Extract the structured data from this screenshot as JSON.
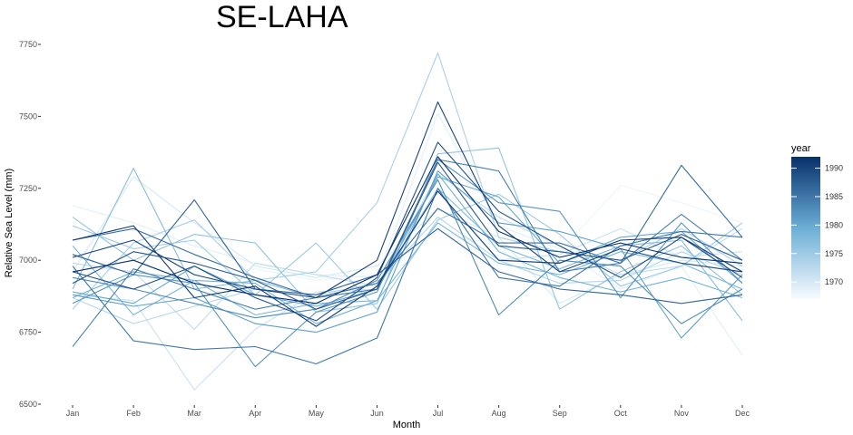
{
  "chart_data": {
    "type": "line",
    "title": "SE-LAHA",
    "xlabel": "Month",
    "ylabel": "Relative Sea Level (mm)",
    "categories": [
      "Jan",
      "Feb",
      "Mar",
      "Apr",
      "May",
      "Jun",
      "Jul",
      "Aug",
      "Sep",
      "Oct",
      "Nov",
      "Dec"
    ],
    "ylim": [
      6500,
      7775
    ],
    "yticks": [
      6500,
      6750,
      7000,
      7250,
      7500,
      7750
    ],
    "grid": false,
    "legend": {
      "title": "year",
      "placement": "right",
      "range": [
        1967,
        1992
      ],
      "ticks": [
        1970,
        1975,
        1980,
        1985,
        1990
      ],
      "color_low": "#f7fbff",
      "color_high": "#08306b"
    },
    "series": [
      {
        "year": 1967,
        "values": [
          6950,
          6980,
          6960,
          6930,
          6900,
          6920,
          7120,
          7060,
          7000,
          7020,
          6990,
          6970
        ]
      },
      {
        "year": 1968,
        "values": [
          6920,
          6900,
          6950,
          6970,
          6930,
          6950,
          7100,
          7050,
          7030,
          7260,
          7200,
          7130
        ]
      },
      {
        "year": 1969,
        "values": [
          7190,
          7130,
          7050,
          6990,
          6950,
          6940,
          7510,
          7120,
          7040,
          6900,
          6980,
          6670
        ]
      },
      {
        "year": 1970,
        "values": [
          6960,
          7290,
          7130,
          6980,
          6940,
          6980,
          7180,
          7080,
          6850,
          6950,
          7000,
          6980
        ]
      },
      {
        "year": 1971,
        "values": [
          6880,
          6860,
          6550,
          6760,
          6890,
          6900,
          7240,
          7000,
          7020,
          7110,
          7010,
          7030
        ]
      },
      {
        "year": 1972,
        "values": [
          6990,
          6960,
          6760,
          6990,
          6950,
          6910,
          7300,
          7150,
          7050,
          6950,
          6980,
          7110
        ]
      },
      {
        "year": 1973,
        "values": [
          6870,
          6780,
          6840,
          6900,
          6880,
          6920,
          7150,
          7000,
          6920,
          6930,
          7030,
          6950
        ]
      },
      {
        "year": 1974,
        "values": [
          6830,
          7060,
          7140,
          6930,
          6960,
          7200,
          7720,
          7080,
          7030,
          7000,
          7110,
          6980
        ]
      },
      {
        "year": 1975,
        "values": [
          7120,
          7040,
          7070,
          6880,
          7060,
          6830,
          7140,
          7230,
          7090,
          6910,
          6980,
          7130
        ]
      },
      {
        "year": 1976,
        "values": [
          7150,
          7000,
          7090,
          7060,
          6820,
          6850,
          7370,
          7390,
          6830,
          6960,
          7050,
          6880
        ]
      },
      {
        "year": 1977,
        "values": [
          6900,
          7320,
          6900,
          6930,
          6870,
          6900,
          7250,
          7050,
          6970,
          7050,
          7070,
          6790
        ]
      },
      {
        "year": 1978,
        "values": [
          7050,
          6810,
          6930,
          6810,
          6850,
          6860,
          7130,
          6990,
          6950,
          7030,
          6990,
          6900
        ]
      },
      {
        "year": 1979,
        "values": [
          6870,
          6960,
          6930,
          6920,
          6780,
          6860,
          7300,
          7030,
          6940,
          6890,
          6940,
          6870
        ]
      },
      {
        "year": 1980,
        "values": [
          6890,
          6850,
          6980,
          6880,
          6840,
          6900,
          7290,
          7220,
          6990,
          7080,
          7100,
          6920
        ]
      },
      {
        "year": 1981,
        "values": [
          6880,
          6840,
          6870,
          6780,
          6750,
          6820,
          7310,
          7130,
          7100,
          7040,
          6730,
          6950
        ]
      },
      {
        "year": 1982,
        "values": [
          6850,
          6950,
          6920,
          6630,
          6820,
          6890,
          7350,
          7200,
          7170,
          6870,
          7130,
          6920
        ]
      },
      {
        "year": 1983,
        "values": [
          6940,
          6900,
          6850,
          6800,
          6830,
          6930,
          7280,
          6810,
          7000,
          6980,
          6780,
          6900
        ]
      },
      {
        "year": 1984,
        "values": [
          6700,
          6970,
          6900,
          6830,
          6870,
          6900,
          7350,
          7310,
          6960,
          6990,
          7160,
          7000
        ]
      },
      {
        "year": 1985,
        "values": [
          6980,
          6720,
          6690,
          6700,
          6640,
          6730,
          7250,
          6940,
          6910,
          7050,
          7100,
          7080
        ]
      },
      {
        "year": 1986,
        "values": [
          7070,
          7110,
          7020,
          6940,
          6870,
          6920,
          7180,
          7060,
          7060,
          6990,
          7330,
          7080
        ]
      },
      {
        "year": 1987,
        "values": [
          7020,
          6950,
          7210,
          6900,
          6880,
          6950,
          7110,
          6960,
          6900,
          6880,
          6850,
          6880
        ]
      },
      {
        "year": 1988,
        "values": [
          6920,
          7030,
          6990,
          6930,
          6830,
          6900,
          7340,
          7050,
          7030,
          7000,
          7090,
          7000
        ]
      },
      {
        "year": 1989,
        "values": [
          6960,
          6900,
          6980,
          6870,
          6790,
          6940,
          7410,
          7170,
          7050,
          6940,
          7080,
          6940
        ]
      },
      {
        "year": 1990,
        "values": [
          7010,
          7070,
          6950,
          6900,
          6870,
          7000,
          7550,
          7120,
          6960,
          7040,
          6990,
          6960
        ]
      },
      {
        "year": 1991,
        "values": [
          7070,
          7120,
          6870,
          6910,
          6770,
          6910,
          7240,
          7000,
          6990,
          7070,
          7080,
          6960
        ]
      },
      {
        "year": 1992,
        "values": [
          6960,
          7000,
          6920,
          6880,
          6850,
          6950,
          7360,
          7100,
          7010,
          7060,
          7010,
          6990
        ]
      }
    ]
  }
}
